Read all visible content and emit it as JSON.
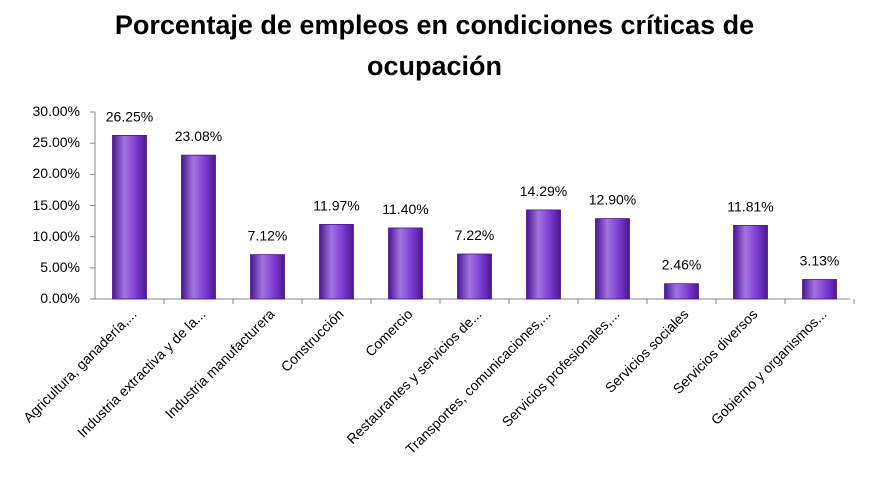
{
  "chart_data": {
    "type": "bar",
    "title_lines": [
      "Porcentaje de empleos en condiciones críticas de",
      "ocupación"
    ],
    "xlabel": "",
    "ylabel": "",
    "ylim": [
      0,
      30
    ],
    "yticks": [
      "0.00%",
      "5.00%",
      "10.00%",
      "15.00%",
      "20.00%",
      "25.00%",
      "30.00%"
    ],
    "grid": false,
    "legend": "none",
    "categories": [
      "Agricultura, ganadería,...",
      "Industria extractiva y de la...",
      "Industria manufacturera",
      "Construcción",
      "Comercio",
      "Restaurantes y servicios de...",
      "Transportes, comunicaciones,...",
      "Servicios profesionales,...",
      "Servicios sociales",
      "Servicios diversos",
      "Gobierno y organismos..."
    ],
    "values": [
      26.25,
      23.08,
      7.12,
      11.97,
      11.4,
      7.22,
      14.29,
      12.9,
      2.46,
      11.81,
      3.13
    ],
    "data_labels": [
      "26.25%",
      "23.08%",
      "7.12%",
      "11.97%",
      "11.40%",
      "7.22%",
      "14.29%",
      "12.90%",
      "2.46%",
      "11.81%",
      "3.13%"
    ],
    "colors": {
      "bar_light": "#a374e0",
      "bar_mid": "#7a3ad0",
      "bar_dark": "#4a1790",
      "axis": "#888888"
    }
  }
}
